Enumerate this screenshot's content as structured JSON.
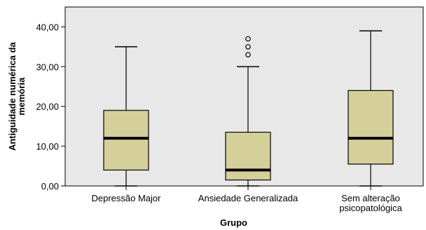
{
  "chart_data": {
    "type": "boxplot",
    "xlabel": "Grupo",
    "ylabel_lines": [
      "Antiguidade numérica da",
      "memória"
    ],
    "ylim": [
      0,
      45
    ],
    "yticks": [
      0,
      10,
      20,
      30,
      40
    ],
    "ytick_labels": [
      "0,00",
      "10,00",
      "20,00",
      "30,00",
      "40,00"
    ],
    "grid": false,
    "categories": [
      {
        "label_lines": [
          "Depressão Major"
        ]
      },
      {
        "label_lines": [
          "Ansiedade Generalizada"
        ]
      },
      {
        "label_lines": [
          "Sem alteração",
          "psicopatológica"
        ]
      }
    ],
    "boxes": [
      {
        "min": 0,
        "q1": 4,
        "median": 12,
        "q3": 19,
        "max": 35,
        "outliers": []
      },
      {
        "min": 0,
        "q1": 1.5,
        "median": 4,
        "q3": 13.5,
        "max": 30,
        "outliers": [
          33,
          35,
          37
        ]
      },
      {
        "min": 0,
        "q1": 5.5,
        "median": 12,
        "q3": 24,
        "max": 39,
        "outliers": []
      }
    ],
    "colors": {
      "plot_background": "#e8e8e8",
      "box_fill": "#d5d09a",
      "stroke": "#000000"
    }
  }
}
